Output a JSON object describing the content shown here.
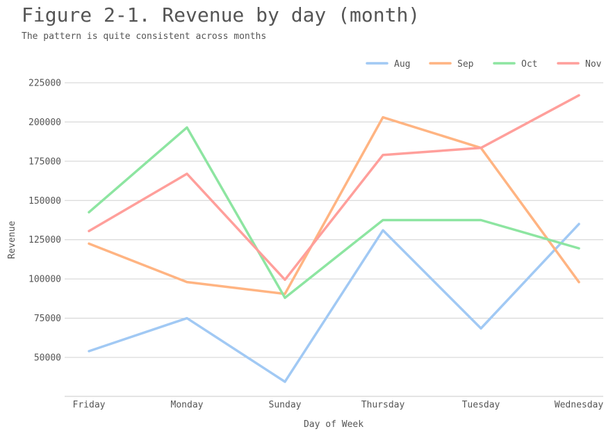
{
  "chart_data": {
    "type": "line",
    "title": "Figure 2-1. Revenue by day (month)",
    "subtitle": "The pattern is quite consistent across months",
    "xlabel": "Day of Week",
    "ylabel": "Revenue",
    "categories": [
      "Friday",
      "Monday",
      "Sunday",
      "Thursday",
      "Tuesday",
      "Wednesday"
    ],
    "yticks": [
      50000,
      75000,
      100000,
      125000,
      150000,
      175000,
      200000,
      225000
    ],
    "ylim": [
      25000,
      225000
    ],
    "grid": "horizontal",
    "legend_position": "top-right",
    "series": [
      {
        "name": "Aug",
        "color": "#a1c9f4",
        "values": [
          54000,
          75000,
          34500,
          131000,
          68500,
          135000
        ]
      },
      {
        "name": "Sep",
        "color": "#ffb482",
        "values": [
          122500,
          98000,
          90500,
          203000,
          183500,
          98000
        ]
      },
      {
        "name": "Oct",
        "color": "#8de5a1",
        "values": [
          142500,
          196500,
          88000,
          137500,
          137500,
          119500
        ]
      },
      {
        "name": "Nov",
        "color": "#ff9f9b",
        "values": [
          130500,
          167000,
          99500,
          179000,
          183500,
          217000
        ]
      }
    ]
  }
}
